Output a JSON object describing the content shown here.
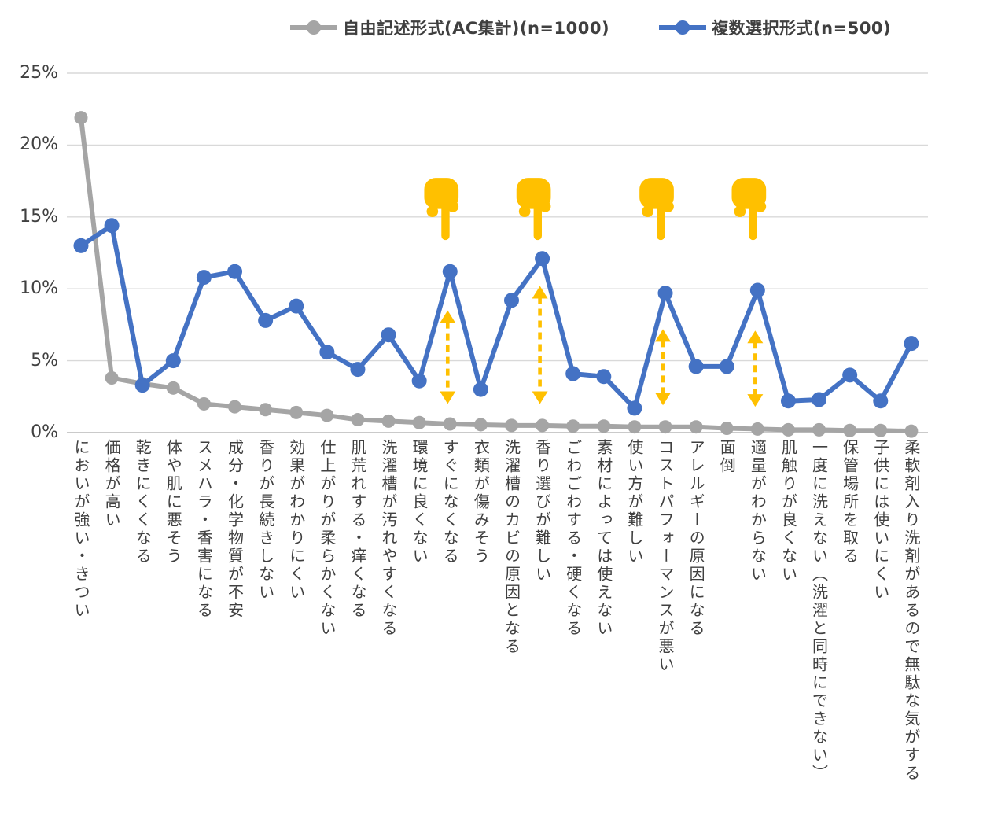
{
  "legend": {
    "items": [
      {
        "label": "自由記述形式(AC集計)(n=1000)",
        "color": "#A5A5A5"
      },
      {
        "label": "複数選択形式(n=500)",
        "color": "#4472C4"
      }
    ]
  },
  "colors": {
    "grid": "#D9D9D9",
    "axis_line": "#C2C2C2",
    "tick_text": "#404040",
    "annotation": "#FFC000"
  },
  "chart_data": {
    "type": "line",
    "title": "",
    "xlabel": "",
    "ylabel": "",
    "ylim": [
      0,
      25
    ],
    "yticks": [
      "0%",
      "5%",
      "10%",
      "15%",
      "20%",
      "25%"
    ],
    "grid": true,
    "legend_position": "top-center",
    "categories": [
      "においが強い・きつい",
      "価格が高い",
      "乾きにくくなる",
      "体や肌に悪そう",
      "スメハラ・香害になる",
      "成分・化学物質が不安",
      "香りが長続きしない",
      "効果がわかりにくい",
      "仕上がりが柔らかくない",
      "肌荒れする・痒くなる",
      "洗濯槽が汚れやすくなる",
      "環境に良くない",
      "すぐになくなる",
      "衣類が傷みそう",
      "洗濯槽のカビの原因となる",
      "香り選びが難しい",
      "ごわごわする・硬くなる",
      "素材によっては使えない",
      "使い方が難しい",
      "コストパフォーマンスが悪い",
      "アレルギーの原因になる",
      "面倒",
      "適量がわからない",
      "肌触りが良くない",
      "一度に洗えない（洗濯と同時にできない）",
      "保管場所を取る",
      "子供には使いにくい",
      "柔軟剤入り洗剤があるので無駄な気がする"
    ],
    "series": [
      {
        "name": "自由記述形式(AC集計)(n=1000)",
        "color": "#A5A5A5",
        "values": [
          21.9,
          3.8,
          3.4,
          3.1,
          2.0,
          1.8,
          1.6,
          1.4,
          1.2,
          0.9,
          0.8,
          0.7,
          0.6,
          0.55,
          0.5,
          0.5,
          0.45,
          0.45,
          0.4,
          0.4,
          0.4,
          0.3,
          0.25,
          0.2,
          0.2,
          0.15,
          0.15,
          0.1
        ]
      },
      {
        "name": "複数選択形式(n=500)",
        "color": "#4472C4",
        "values": [
          13.0,
          14.4,
          3.3,
          5.0,
          10.8,
          11.2,
          7.8,
          8.8,
          5.6,
          4.4,
          6.8,
          3.6,
          11.2,
          3.0,
          9.2,
          12.1,
          4.1,
          3.9,
          1.7,
          9.7,
          4.6,
          4.6,
          9.9,
          2.2,
          2.3,
          4.0,
          2.2,
          6.2
        ]
      }
    ],
    "annotations": {
      "color": "#FFC000",
      "pointing_hand_category_indexes": [
        12,
        15,
        19,
        22
      ],
      "pointing_hand_categories": [
        "すぐになくなる",
        "香り選びが難しい",
        "コストパフォーマンスが悪い",
        "適量がわからない"
      ],
      "arrows": [
        {
          "category_index": 12,
          "from_pct": 2.0,
          "to_pct": 8.5
        },
        {
          "category_index": 15,
          "from_pct": 2.0,
          "to_pct": 10.2
        },
        {
          "category_index": 19,
          "from_pct": 1.9,
          "to_pct": 7.2
        },
        {
          "category_index": 22,
          "from_pct": 1.8,
          "to_pct": 7.1
        }
      ]
    }
  }
}
